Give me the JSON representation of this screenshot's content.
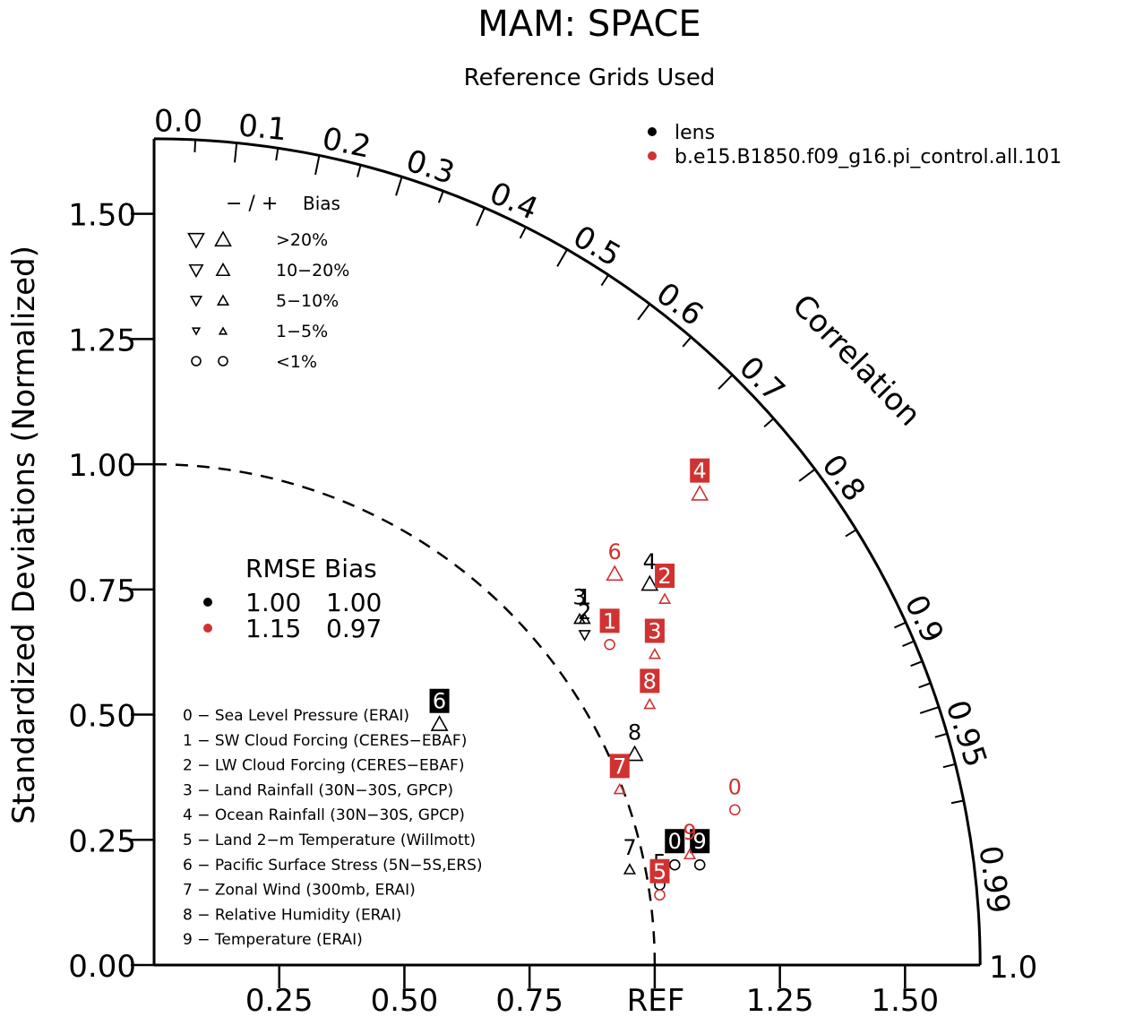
{
  "chart_data": {
    "type": "taylor-diagram",
    "title": "MAM: SPACE",
    "subtitle": "Reference Grids Used",
    "ylabel": "Standardized Deviations (Normalized)",
    "correlation_label": "Correlation",
    "ref_label": "REF",
    "std_max": 1.65,
    "y_ticks": [
      {
        "value": 0.0,
        "label": "0.00"
      },
      {
        "value": 0.25,
        "label": "0.25"
      },
      {
        "value": 0.5,
        "label": "0.50"
      },
      {
        "value": 0.75,
        "label": "0.75"
      },
      {
        "value": 1.0,
        "label": "1.00"
      },
      {
        "value": 1.25,
        "label": "1.25"
      },
      {
        "value": 1.5,
        "label": "1.50"
      }
    ],
    "x_ticks": [
      {
        "value": 0.25,
        "label": "0.25"
      },
      {
        "value": 0.5,
        "label": "0.50"
      },
      {
        "value": 0.75,
        "label": "0.75"
      },
      {
        "value": 1.25,
        "label": "1.25"
      },
      {
        "value": 1.5,
        "label": "1.50"
      }
    ],
    "corr_labels": [
      {
        "value": 0.0,
        "label": "0.0"
      },
      {
        "value": 0.1,
        "label": "0.1"
      },
      {
        "value": 0.2,
        "label": "0.2"
      },
      {
        "value": 0.3,
        "label": "0.3"
      },
      {
        "value": 0.4,
        "label": "0.4"
      },
      {
        "value": 0.5,
        "label": "0.5"
      },
      {
        "value": 0.6,
        "label": "0.6"
      },
      {
        "value": 0.7,
        "label": "0.7"
      },
      {
        "value": 0.8,
        "label": "0.8"
      },
      {
        "value": 0.9,
        "label": "0.9"
      },
      {
        "value": 0.95,
        "label": "0.95"
      },
      {
        "value": 0.99,
        "label": "0.99"
      },
      {
        "value": 1.0,
        "label": "1.0"
      }
    ],
    "series": [
      {
        "name": "lens",
        "color": "#000000",
        "rmse": "1.00",
        "bias": "1.00",
        "points": [
          {
            "id": "0",
            "x": 1.04,
            "y": 0.2,
            "marker": "circle",
            "label_style": "box"
          },
          {
            "id": "1",
            "x": 0.86,
            "y": 0.69,
            "marker": "triangle-up-small",
            "label_style": "text"
          },
          {
            "id": "2",
            "x": 0.86,
            "y": 0.66,
            "marker": "triangle-down-small",
            "label_style": "text"
          },
          {
            "id": "3",
            "x": 0.85,
            "y": 0.69,
            "marker": "triangle-up-small",
            "label_style": "text"
          },
          {
            "id": "4",
            "x": 0.99,
            "y": 0.76,
            "marker": "triangle-up",
            "label_style": "text"
          },
          {
            "id": "5",
            "x": 1.01,
            "y": 0.16,
            "marker": "circle",
            "label_style": "text"
          },
          {
            "id": "6",
            "x": 0.57,
            "y": 0.48,
            "marker": "triangle-up",
            "label_style": "box"
          },
          {
            "id": "7",
            "x": 0.95,
            "y": 0.19,
            "marker": "triangle-up-small",
            "label_style": "text"
          },
          {
            "id": "8",
            "x": 0.96,
            "y": 0.42,
            "marker": "triangle-up",
            "label_style": "text"
          },
          {
            "id": "9",
            "x": 1.09,
            "y": 0.2,
            "marker": "circle",
            "label_style": "box"
          }
        ]
      },
      {
        "name": "b.e15.B1850.f09_g16.pi_control.all.101",
        "color": "#d03232",
        "rmse": "1.15",
        "bias": "0.97",
        "points": [
          {
            "id": "0",
            "x": 1.16,
            "y": 0.31,
            "marker": "circle",
            "label_style": "text"
          },
          {
            "id": "1",
            "x": 0.91,
            "y": 0.64,
            "marker": "circle",
            "label_style": "box"
          },
          {
            "id": "2",
            "x": 1.02,
            "y": 0.73,
            "marker": "triangle-up-small",
            "label_style": "box"
          },
          {
            "id": "3",
            "x": 1.0,
            "y": 0.62,
            "marker": "triangle-up-small",
            "label_style": "box"
          },
          {
            "id": "4",
            "x": 1.09,
            "y": 0.94,
            "marker": "triangle-up",
            "label_style": "box"
          },
          {
            "id": "5",
            "x": 1.01,
            "y": 0.14,
            "marker": "circle",
            "label_style": "box"
          },
          {
            "id": "6",
            "x": 0.92,
            "y": 0.78,
            "marker": "triangle-up",
            "label_style": "text"
          },
          {
            "id": "7",
            "x": 0.93,
            "y": 0.35,
            "marker": "triangle-up-small",
            "label_style": "box"
          },
          {
            "id": "8",
            "x": 0.99,
            "y": 0.52,
            "marker": "triangle-up-small",
            "label_style": "box"
          },
          {
            "id": "9",
            "x": 1.07,
            "y": 0.22,
            "marker": "triangle-up-small",
            "label_style": "text"
          }
        ]
      }
    ],
    "bias_legend": {
      "header_signs": "−  /  +",
      "header_label": "Bias",
      "rows": [
        {
          "size": "large",
          "label": ">20%"
        },
        {
          "size": "medium",
          "label": "10−20%"
        },
        {
          "size": "small",
          "label": "5−10%"
        },
        {
          "size": "tiny",
          "label": "1−5%"
        },
        {
          "size": "circle",
          "label": "<1%"
        }
      ]
    },
    "rmse_legend": {
      "header": "RMSE Bias"
    },
    "variables": [
      "0 − Sea Level Pressure (ERAI)",
      "1 − SW Cloud Forcing (CERES−EBAF)",
      "2 − LW Cloud Forcing (CERES−EBAF)",
      "3 − Land Rainfall (30N−30S, GPCP)",
      "4 − Ocean Rainfall (30N−30S, GPCP)",
      "5 − Land 2−m Temperature (Willmott)",
      "6 − Pacific Surface Stress (5N−5S,ERS)",
      "7 − Zonal Wind (300mb, ERAI)",
      "8 − Relative Humidity (ERAI)",
      "9 − Temperature (ERAI)"
    ]
  }
}
